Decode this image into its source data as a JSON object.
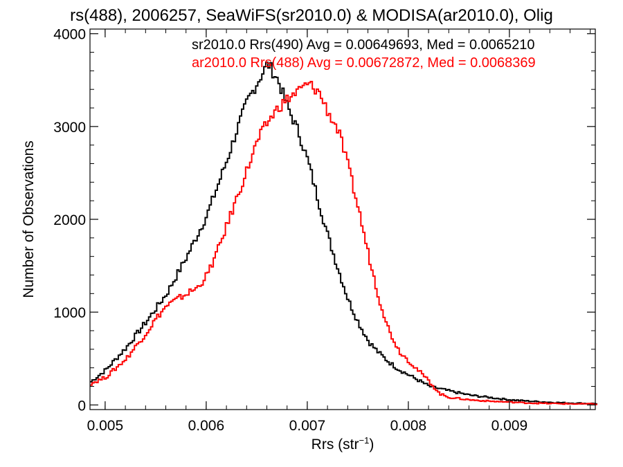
{
  "chart_data": {
    "type": "line",
    "title": "rs(488), 2006257, SeaWiFS(sr2010.0) & MODISA(ar2010.0), Olig",
    "xlabel": "Rrs (str",
    "xlabel_sup": "−1",
    "xlabel_close": ")",
    "ylabel": "Number of Observations",
    "xlim": [
      0.00485,
      0.00985
    ],
    "ylim": [
      -50,
      4050
    ],
    "x_ticks": [
      0.005,
      0.006,
      0.007,
      0.008,
      0.009
    ],
    "x_tick_labels": [
      "0.005",
      "0.006",
      "0.007",
      "0.008",
      "0.009"
    ],
    "y_ticks": [
      0,
      1000,
      2000,
      3000,
      4000
    ],
    "y_tick_labels": [
      "0",
      "1000",
      "2000",
      "3000",
      "4000"
    ],
    "grid": false,
    "legend_position": "top-right",
    "legend": [
      {
        "text": "sr2010.0 Rrs(490) Avg = 0.00649693, Med = 0.0065210",
        "color": "#000000"
      },
      {
        "text": "ar2010.0 Rrs(488) Avg = 0.00672872, Med = 0.0068369",
        "color": "#ff0000"
      }
    ],
    "series": [
      {
        "color": "#000000",
        "x": [
          0.00485,
          0.005,
          0.0052,
          0.0054,
          0.0056,
          0.0058,
          0.006,
          0.0061,
          0.0062,
          0.0063,
          0.0064,
          0.0065,
          0.0066,
          0.0067,
          0.0068,
          0.0069,
          0.007,
          0.0071,
          0.0072,
          0.0073,
          0.0074,
          0.0075,
          0.0076,
          0.0077,
          0.0078,
          0.0079,
          0.008,
          0.0082,
          0.0084,
          0.0086,
          0.0088,
          0.009,
          0.0092,
          0.0094,
          0.0096,
          0.0098,
          0.00985
        ],
        "y": [
          250,
          380,
          620,
          900,
          1200,
          1600,
          2050,
          2350,
          2650,
          2980,
          3280,
          3480,
          3680,
          3500,
          3200,
          2950,
          2620,
          2200,
          1800,
          1450,
          1120,
          880,
          680,
          560,
          460,
          380,
          320,
          200,
          150,
          105,
          80,
          55,
          40,
          28,
          20,
          15,
          15
        ]
      },
      {
        "color": "#ff0000",
        "x": [
          0.00485,
          0.005,
          0.0052,
          0.0054,
          0.0055,
          0.0056,
          0.0058,
          0.0059,
          0.006,
          0.0061,
          0.0062,
          0.0063,
          0.0064,
          0.0065,
          0.0066,
          0.0067,
          0.0068,
          0.0069,
          0.007,
          0.0071,
          0.0072,
          0.0073,
          0.0074,
          0.0075,
          0.0076,
          0.0077,
          0.0078,
          0.0079,
          0.008,
          0.0081,
          0.0082,
          0.0083,
          0.0084,
          0.0086,
          0.0088,
          0.009,
          0.0092,
          0.0094,
          0.0096,
          0.0098,
          0.00985
        ],
        "y": [
          230,
          300,
          500,
          780,
          940,
          1070,
          1200,
          1260,
          1400,
          1650,
          1950,
          2250,
          2550,
          2850,
          3050,
          3200,
          3300,
          3380,
          3460,
          3380,
          3150,
          2950,
          2550,
          2100,
          1600,
          1150,
          800,
          580,
          470,
          360,
          250,
          120,
          80,
          55,
          40,
          30,
          20,
          15,
          12,
          10,
          10
        ]
      }
    ]
  }
}
